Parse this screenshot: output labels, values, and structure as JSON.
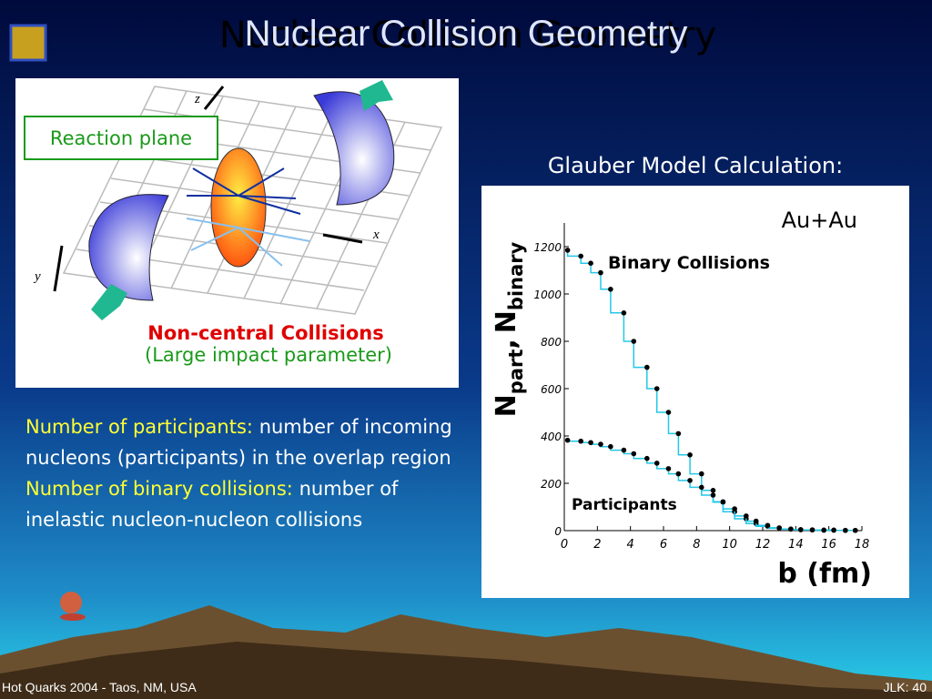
{
  "slide": {
    "title": "Nuclear Collision Geometry",
    "diagram": {
      "reaction_plane": "Reaction plane",
      "axis_z": "z",
      "axis_x": "x",
      "axis_y": "y",
      "caption_1": "Non-central Collisions",
      "caption_2": "(Large impact parameter)"
    },
    "chart_heading": "Glauber Model Calculation:",
    "definitions": [
      {
        "term": "Number of participants:",
        "text": "number of incoming nucleons (participants) in the overlap region"
      },
      {
        "term": "Number of binary collisions:",
        "text": "number of inelastic nucleon-nucleon collisions"
      }
    ],
    "footer_left": "Hot Quarks 2004 - Taos, NM, USA",
    "footer_right": "JLK: 40"
  },
  "chart_data": {
    "type": "scatter",
    "title": "Au+Au",
    "xlabel": "b (fm)",
    "ylabel": {
      "n1": "N",
      "sub1": "part",
      "sep": ",",
      "n2": "N",
      "sub2": "binary"
    },
    "x": [
      0.2,
      1,
      1.6,
      2.2,
      2.8,
      3.6,
      4.2,
      5.0,
      5.6,
      6.3,
      6.9,
      7.6,
      8.3,
      9.0,
      9.6,
      10.3,
      11.0,
      11.6,
      12.3,
      13,
      13.7,
      14.3,
      15,
      15.7,
      16.3,
      17,
      17.6
    ],
    "series": [
      {
        "name": "Binary Collisions",
        "color": "#000000",
        "line_color": "#22c8e8",
        "values": [
          1185,
          1160,
          1130,
          1090,
          1020,
          920,
          800,
          690,
          600,
          500,
          410,
          320,
          240,
          170,
          120,
          80,
          50,
          30,
          18,
          10,
          6,
          4,
          3,
          2,
          2,
          1,
          1
        ]
      },
      {
        "name": "Participants",
        "color": "#000000",
        "line_color": "#22c8e8",
        "values": [
          382,
          378,
          372,
          365,
          355,
          340,
          325,
          305,
          285,
          262,
          240,
          212,
          183,
          150,
          122,
          92,
          62,
          40,
          22,
          12,
          7,
          4,
          3,
          2,
          2,
          1,
          1
        ]
      }
    ],
    "xlim": [
      0,
      18
    ],
    "xticks": [
      0,
      2,
      4,
      6,
      8,
      10,
      12,
      14,
      16,
      18
    ],
    "ylim": [
      0,
      1300
    ],
    "yticks": [
      0,
      200,
      400,
      600,
      800,
      1000,
      1200
    ]
  }
}
